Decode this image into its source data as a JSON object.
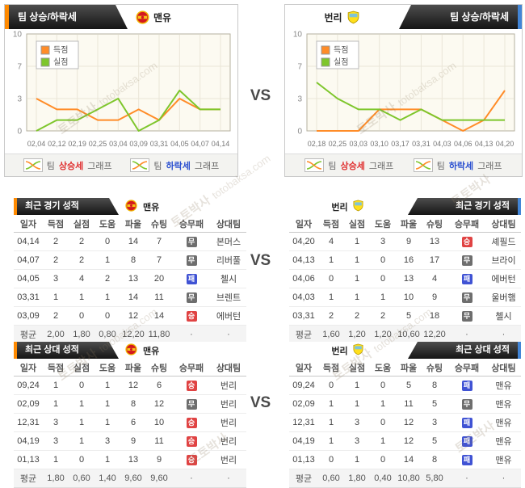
{
  "vs_label": "VS",
  "watermark": {
    "korean": "토토박사",
    "domain": "totobaksa.com"
  },
  "teams": {
    "home": {
      "name": "맨유"
    },
    "away": {
      "name": "번리"
    }
  },
  "trend_panels": {
    "left": {
      "tab": "팀 상승/하락세"
    },
    "right": {
      "tab": "팀 상승/하락세"
    }
  },
  "trend_footer": {
    "rise": {
      "pre": "팀",
      "hl": "상승세",
      "post": "그래프"
    },
    "fall": {
      "pre": "팀",
      "hl": "하락세",
      "post": "그래프"
    }
  },
  "chart_data": [
    {
      "type": "line",
      "title": "팀 상승/하락세 - 맨유",
      "x": [
        "02,04",
        "02,12",
        "02,19",
        "02,25",
        "03,04",
        "03,09",
        "03,31",
        "04,05",
        "04,07",
        "04,14"
      ],
      "series": [
        {
          "name": "득점",
          "color": "#ff8c28",
          "values": [
            3,
            2,
            2,
            1,
            1,
            2,
            1,
            3,
            2,
            2
          ]
        },
        {
          "name": "실점",
          "color": "#7ec62c",
          "values": [
            0,
            1,
            1,
            2,
            3,
            0,
            1,
            4,
            2,
            2
          ]
        }
      ],
      "yticks": [
        0,
        3,
        7,
        10
      ],
      "ylim": [
        0,
        10
      ],
      "grid": true,
      "legend_position": "top-left"
    },
    {
      "type": "line",
      "title": "팀 상승/하락세 - 번리",
      "x": [
        "02,18",
        "02,25",
        "03,03",
        "03,10",
        "03,17",
        "03,31",
        "04,03",
        "04,06",
        "04,13",
        "04,20"
      ],
      "series": [
        {
          "name": "득점",
          "color": "#ff8c28",
          "values": [
            0,
            0,
            0,
            2,
            2,
            2,
            1,
            0,
            1,
            4
          ]
        },
        {
          "name": "실점",
          "color": "#7ec62c",
          "values": [
            5,
            3,
            2,
            2,
            1,
            2,
            1,
            1,
            1,
            1
          ]
        }
      ],
      "yticks": [
        0,
        3,
        7,
        10
      ],
      "ylim": [
        0,
        10
      ],
      "grid": true,
      "legend_position": "top-left"
    }
  ],
  "result_badges": {
    "승": "#e04343",
    "무": "#6e6e6e",
    "패": "#4053d4"
  },
  "tables": [
    {
      "tab": "최근 경기 성적",
      "team": "맨유",
      "side": "left",
      "columns": [
        "일자",
        "득점",
        "실점",
        "도움",
        "파울",
        "슈팅",
        "승무패",
        "상대팀"
      ],
      "rows": [
        [
          "04,14",
          "2",
          "2",
          "0",
          "14",
          "7",
          "무",
          "본머스"
        ],
        [
          "04,07",
          "2",
          "2",
          "1",
          "8",
          "7",
          "무",
          "리버풀"
        ],
        [
          "04,05",
          "3",
          "4",
          "2",
          "13",
          "20",
          "패",
          "첼시"
        ],
        [
          "03,31",
          "1",
          "1",
          "1",
          "14",
          "11",
          "무",
          "브렌트"
        ],
        [
          "03,09",
          "2",
          "0",
          "0",
          "12",
          "14",
          "승",
          "에버턴"
        ]
      ],
      "avg": [
        "평균",
        "2,00",
        "1,80",
        "0,80",
        "12,20",
        "11,80",
        "·",
        "·"
      ]
    },
    {
      "tab": "최근 경기 성적",
      "team": "번리",
      "side": "right",
      "columns": [
        "일자",
        "득점",
        "실점",
        "도움",
        "파울",
        "슈팅",
        "승무패",
        "상대팀"
      ],
      "rows": [
        [
          "04,20",
          "4",
          "1",
          "3",
          "9",
          "13",
          "승",
          "셰필드"
        ],
        [
          "04,13",
          "1",
          "1",
          "0",
          "16",
          "17",
          "무",
          "브라이"
        ],
        [
          "04,06",
          "0",
          "1",
          "0",
          "13",
          "4",
          "패",
          "에버턴"
        ],
        [
          "04,03",
          "1",
          "1",
          "1",
          "10",
          "9",
          "무",
          "울버햄"
        ],
        [
          "03,31",
          "2",
          "2",
          "2",
          "5",
          "18",
          "무",
          "첼시"
        ]
      ],
      "avg": [
        "평균",
        "1,60",
        "1,20",
        "1,20",
        "10,60",
        "12,20",
        "·",
        "·"
      ]
    },
    {
      "tab": "최근 상대 성적",
      "team": "맨유",
      "side": "left",
      "columns": [
        "일자",
        "득점",
        "실점",
        "도움",
        "파울",
        "슈팅",
        "승무패",
        "상대팀"
      ],
      "rows": [
        [
          "09,24",
          "1",
          "0",
          "1",
          "12",
          "6",
          "승",
          "번리"
        ],
        [
          "02,09",
          "1",
          "1",
          "1",
          "8",
          "12",
          "무",
          "번리"
        ],
        [
          "12,31",
          "3",
          "1",
          "1",
          "6",
          "10",
          "승",
          "번리"
        ],
        [
          "04,19",
          "3",
          "1",
          "3",
          "9",
          "11",
          "승",
          "번리"
        ],
        [
          "01,13",
          "1",
          "0",
          "1",
          "13",
          "9",
          "승",
          "번리"
        ]
      ],
      "avg": [
        "평균",
        "1,80",
        "0,60",
        "1,40",
        "9,60",
        "9,60",
        "·",
        "·"
      ]
    },
    {
      "tab": "최근 상대 성적",
      "team": "번리",
      "side": "right",
      "columns": [
        "일자",
        "득점",
        "실점",
        "도움",
        "파울",
        "슈팅",
        "승무패",
        "상대팀"
      ],
      "rows": [
        [
          "09,24",
          "0",
          "1",
          "0",
          "5",
          "8",
          "패",
          "맨유"
        ],
        [
          "02,09",
          "1",
          "1",
          "1",
          "11",
          "5",
          "무",
          "맨유"
        ],
        [
          "12,31",
          "1",
          "3",
          "0",
          "12",
          "3",
          "패",
          "맨유"
        ],
        [
          "04,19",
          "1",
          "3",
          "1",
          "12",
          "5",
          "패",
          "맨유"
        ],
        [
          "01,13",
          "0",
          "1",
          "0",
          "14",
          "8",
          "패",
          "맨유"
        ]
      ],
      "avg": [
        "평균",
        "0,60",
        "1,80",
        "0,40",
        "10,80",
        "5,80",
        "·",
        "·"
      ]
    }
  ]
}
